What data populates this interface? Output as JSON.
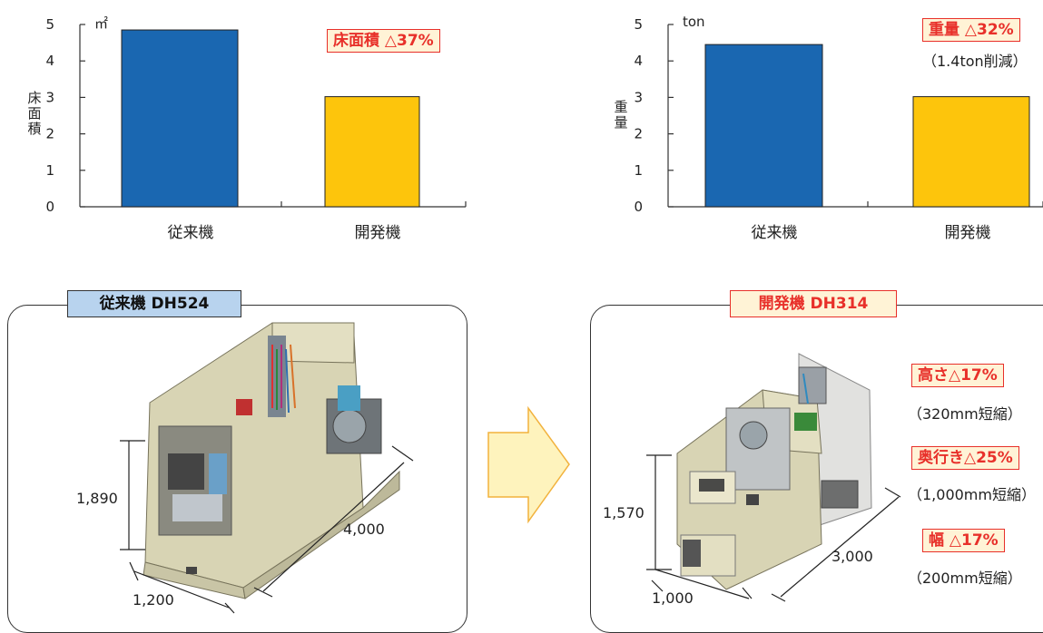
{
  "charts_text": {
    "left": {
      "unit": "㎡",
      "ylabel": [
        "床",
        "面",
        "積"
      ],
      "badge": "床面積 △37%"
    },
    "right": {
      "unit": "ton",
      "ylabel": [
        "重",
        "量"
      ],
      "badge": "重量 △32%",
      "note": "（1.4ton削減）"
    }
  },
  "chart_data": [
    {
      "type": "bar",
      "categories": [
        "従来機",
        "開発機"
      ],
      "values": [
        4.85,
        3.02
      ],
      "ylabel": "床面積",
      "unit": "㎡",
      "ylim": [
        0,
        5
      ],
      "yticks": [
        0,
        1,
        2,
        3,
        4,
        5
      ],
      "annotation": "床面積 △37%",
      "colors": [
        "#1a67b1",
        "#fdc50c"
      ]
    },
    {
      "type": "bar",
      "categories": [
        "従来機",
        "開発機"
      ],
      "values": [
        4.45,
        3.02
      ],
      "ylabel": "重量",
      "unit": "ton",
      "ylim": [
        0,
        5
      ],
      "yticks": [
        0,
        1,
        2,
        3,
        4,
        5
      ],
      "annotation": "重量 △32%",
      "note": "（1.4ton削減）",
      "colors": [
        "#1a67b1",
        "#fdc50c"
      ]
    }
  ],
  "left_machine": {
    "title": "従来機 DH524",
    "height": "1,890",
    "depth": "4,000",
    "width": "1,200"
  },
  "right_machine": {
    "title": "開発機 DH314",
    "height": "1,570",
    "depth": "3,000",
    "width": "1,000"
  },
  "callouts": [
    {
      "badge": "高さ△17%",
      "note": "（320mm短縮）"
    },
    {
      "badge": "奥行き△25%",
      "note": "（1,000mm短縮）"
    },
    {
      "badge": "幅 △17%",
      "note": "（200mm短縮）"
    }
  ],
  "colors": {
    "blue_bar": "#1a67b1",
    "yellow_bar": "#fdc50c",
    "red": "#e8302a",
    "badge_bg": "#fff3d6",
    "title_blue_bg": "#b8d3ee",
    "machine_body": "#d8d4b4",
    "arrow_fill": "#fef3bd",
    "arrow_stroke": "#f2b23d"
  }
}
